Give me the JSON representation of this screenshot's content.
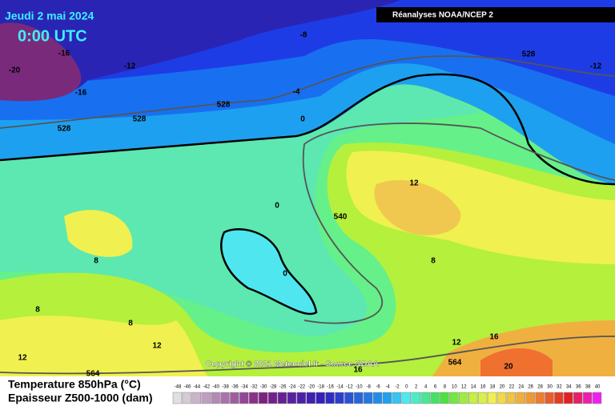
{
  "header": {
    "date": "Jeudi 2 mai 2024",
    "time": "0:00 UTC",
    "source": "Réanalyses NOAA/NCEP 2"
  },
  "copyright": "Copyright © 2021 Meteociel.fr - Source NOAA",
  "legend": {
    "title": "Temperature 850hPa (°C)",
    "subtitle": "Epaisseur Z500-1000 (dam)",
    "scale": [
      "-48",
      "-46",
      "-44",
      "-42",
      "-40",
      "-38",
      "-36",
      "-34",
      "-32",
      "-30",
      "-28",
      "-26",
      "-24",
      "-22",
      "-20",
      "-18",
      "-16",
      "-14",
      "-12",
      "-10",
      "-8",
      "-6",
      "-4",
      "-2",
      "0",
      "2",
      "4",
      "6",
      "8",
      "10",
      "12",
      "14",
      "16",
      "18",
      "20",
      "22",
      "24",
      "26",
      "28",
      "30",
      "32",
      "34",
      "36",
      "38",
      "40"
    ]
  },
  "map_labels": [
    "-20",
    "-16",
    "-16",
    "-12",
    "-8",
    "-12",
    "-4",
    "0",
    "0",
    "0",
    "528",
    "528",
    "528",
    "528",
    "540",
    "12",
    "8",
    "8",
    "8",
    "8",
    "12",
    "12",
    "12",
    "16",
    "16",
    "564",
    "564",
    "20"
  ]
}
